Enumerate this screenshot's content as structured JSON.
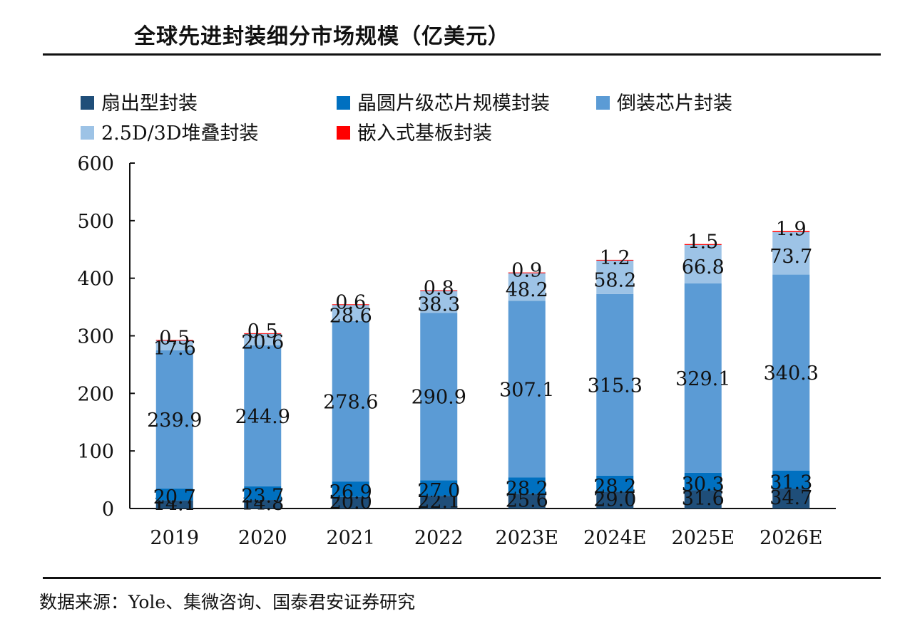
{
  "chart_data": {
    "type": "bar",
    "stacked": true,
    "title": "全球先进封装细分市场规模（亿美元）",
    "xlabel": "",
    "ylabel": "",
    "ylim": [
      0,
      600
    ],
    "yticks": [
      0,
      100,
      200,
      300,
      400,
      500,
      600
    ],
    "categories": [
      "2019",
      "2020",
      "2021",
      "2022",
      "2023E",
      "2024E",
      "2025E",
      "2026E"
    ],
    "series": [
      {
        "name": "扇出型封装",
        "color": "#1f4e79",
        "values": [
          14.1,
          14.8,
          20.0,
          22.1,
          25.6,
          29.0,
          31.6,
          34.7
        ]
      },
      {
        "name": "晶圆片级芯片规模封装",
        "color": "#0070c0",
        "values": [
          20.7,
          23.7,
          26.9,
          27.0,
          28.2,
          28.2,
          30.3,
          31.3
        ]
      },
      {
        "name": "倒装芯片封装",
        "color": "#5b9bd5",
        "values": [
          239.9,
          244.9,
          278.6,
          290.9,
          307.1,
          315.3,
          329.1,
          340.3
        ]
      },
      {
        "name": "2.5D/3D堆叠封装",
        "color": "#9dc3e6",
        "values": [
          17.6,
          20.6,
          28.6,
          38.3,
          48.2,
          58.2,
          66.8,
          73.7
        ]
      },
      {
        "name": "嵌入式基板封装",
        "color": "#ff0000",
        "values": [
          0.5,
          0.5,
          0.6,
          0.8,
          0.9,
          1.2,
          1.5,
          1.9
        ]
      }
    ],
    "legend_position": "top-left"
  },
  "source": "数据来源：Yole、集微咨询、国泰君安证券研究"
}
